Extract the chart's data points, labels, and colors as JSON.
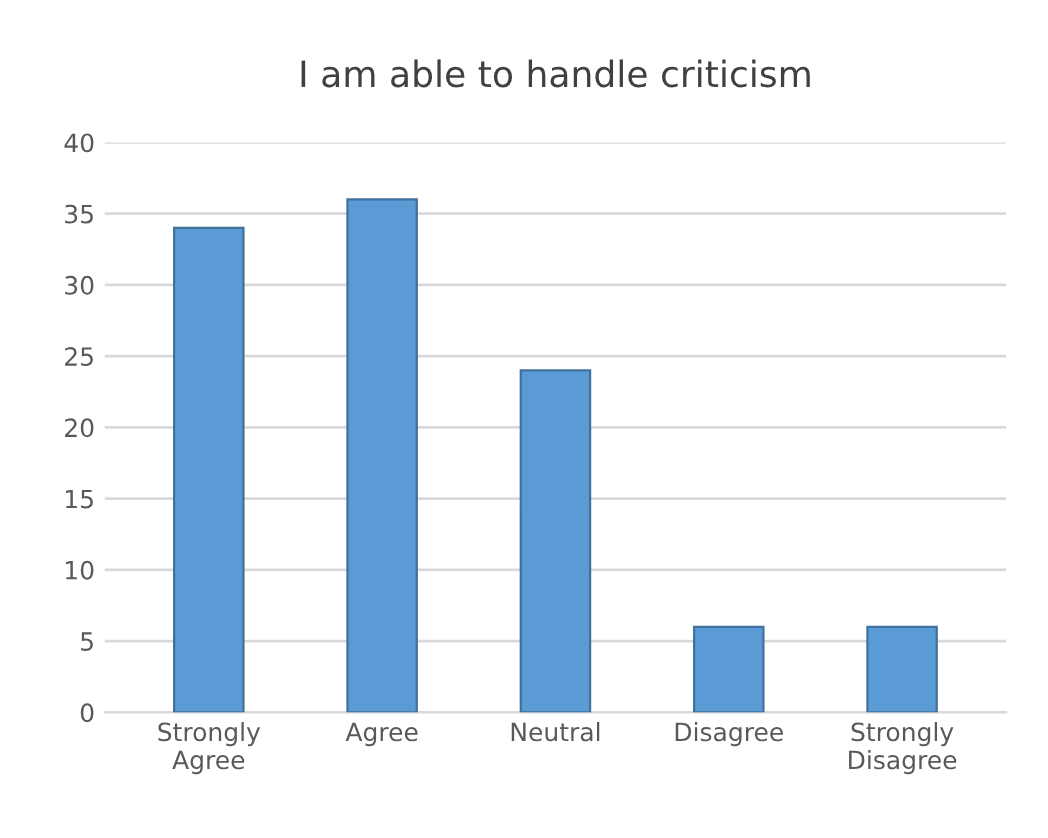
{
  "chart_data": {
    "type": "bar",
    "title": "I am able to handle criticism",
    "categories": [
      "Strongly\nAgree",
      "Agree",
      "Neutral",
      "Disagree",
      "Strongly\nDisagree"
    ],
    "values": [
      34,
      36,
      24,
      6,
      6
    ],
    "color": "#5b9bd5",
    "ylim": [
      0,
      40
    ],
    "yticks": [
      0,
      5,
      10,
      15,
      20,
      25,
      30,
      35,
      40
    ],
    "grid": "y"
  }
}
